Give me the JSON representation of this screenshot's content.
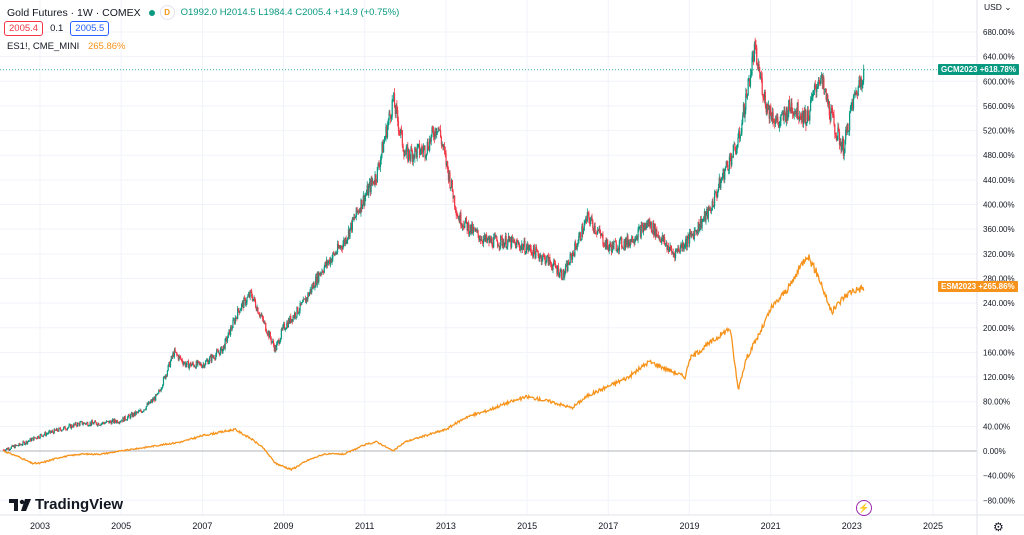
{
  "header": {
    "title": "Gold Futures · 1W · COMEX",
    "badge": "D",
    "ohlc": "O1992.0  H2014.5  L1984.4  C2005.4  +14.9 (+0.75%)",
    "sell_price": "2005.4",
    "spread": "0.1",
    "buy_price": "2005.5",
    "compare_symbol": "ES1!, CME_MINI",
    "compare_value": "265.86%",
    "currency": "USD"
  },
  "brand": {
    "logo_text": "TradingView"
  },
  "colors": {
    "gold": "#089981",
    "es": "#f7931a",
    "bear": "#f23645",
    "bull": "#089981"
  },
  "icons": {
    "settings": "gear-icon",
    "alert": "lightning-icon",
    "currency_menu": "chevron-down-icon"
  },
  "chart_data": {
    "type": "line",
    "x_unit": "year",
    "y_unit": "percent change",
    "xlim": [
      2002.1,
      2025.5
    ],
    "ylim": [
      -110,
      700
    ],
    "x_tick_labels": [
      "2003",
      "2005",
      "2007",
      "2009",
      "2011",
      "2013",
      "2015",
      "2017",
      "2019",
      "2021",
      "2023",
      "2025"
    ],
    "x_ticks": [
      2003,
      2005,
      2007,
      2009,
      2011,
      2013,
      2015,
      2017,
      2019,
      2021,
      2023,
      2025
    ],
    "y_ticks": [
      -80,
      -40,
      0,
      40,
      80,
      120,
      160,
      200,
      240,
      280,
      320,
      360,
      400,
      440,
      480,
      520,
      560,
      600,
      640,
      680
    ],
    "y_tick_labels": [
      "−80.00%",
      "−40.00%",
      "0.00%",
      "40.00%",
      "80.00%",
      "120.00%",
      "160.00%",
      "200.00%",
      "240.00%",
      "280.00%",
      "320.00%",
      "360.00%",
      "400.00%",
      "440.00%",
      "480.00%",
      "520.00%",
      "560.00%",
      "600.00%",
      "640.00%",
      "680.00%"
    ],
    "series": [
      {
        "name": "GCM2023",
        "style": "candles",
        "last_label": "+618.78%",
        "x": [
          2002.1,
          2002.5,
          2003,
          2003.5,
          2004,
          2004.5,
          2005,
          2005.5,
          2005.9,
          2006.3,
          2006.6,
          2007,
          2007.5,
          2007.9,
          2008.2,
          2008.5,
          2008.8,
          2009,
          2009.5,
          2009.9,
          2010.5,
          2010.9,
          2011.3,
          2011.7,
          2012,
          2012.5,
          2012.8,
          2013.3,
          2013.6,
          2014,
          2014.5,
          2015,
          2015.5,
          2015.9,
          2016.5,
          2017,
          2017.5,
          2018,
          2018.6,
          2019,
          2019.5,
          2019.9,
          2020.2,
          2020.6,
          2020.9,
          2021.2,
          2021.5,
          2021.9,
          2022.2,
          2022.6,
          2022.8,
          2023,
          2023.3
        ],
        "y": [
          2,
          10,
          25,
          35,
          45,
          45,
          50,
          65,
          90,
          160,
          140,
          140,
          165,
          230,
          255,
          210,
          165,
          200,
          240,
          290,
          340,
          400,
          450,
          570,
          480,
          490,
          530,
          380,
          360,
          340,
          340,
          330,
          310,
          285,
          380,
          330,
          340,
          370,
          320,
          345,
          390,
          460,
          500,
          650,
          560,
          530,
          560,
          540,
          610,
          520,
          490,
          560,
          620
        ]
      },
      {
        "name": "ESM2023",
        "style": "line",
        "last_label": "+265.86%",
        "x": [
          2002.1,
          2002.5,
          2002.8,
          2003,
          2003.5,
          2004,
          2004.5,
          2005,
          2005.5,
          2006,
          2006.5,
          2007,
          2007.4,
          2007.8,
          2008.2,
          2008.5,
          2008.8,
          2009.0,
          2009.2,
          2009.6,
          2010,
          2010.5,
          2011,
          2011.3,
          2011.7,
          2012,
          2012.5,
          2013,
          2013.5,
          2014,
          2014.5,
          2015,
          2015.6,
          2016.1,
          2016.5,
          2017,
          2017.5,
          2018,
          2018.2,
          2018.9,
          2019,
          2019.5,
          2020,
          2020.2,
          2020.4,
          2020.8,
          2021,
          2021.5,
          2021.9,
          2022.2,
          2022.5,
          2022.8,
          2023,
          2023.3
        ],
        "y": [
          0,
          -10,
          -20,
          -20,
          -10,
          -5,
          -5,
          0,
          5,
          10,
          15,
          25,
          30,
          35,
          20,
          5,
          -20,
          -25,
          -30,
          -15,
          -5,
          -5,
          10,
          15,
          0,
          15,
          25,
          35,
          55,
          65,
          78,
          88,
          80,
          70,
          90,
          105,
          120,
          145,
          140,
          120,
          150,
          175,
          200,
          100,
          150,
          200,
          230,
          270,
          320,
          280,
          225,
          250,
          260,
          265
        ]
      }
    ]
  }
}
